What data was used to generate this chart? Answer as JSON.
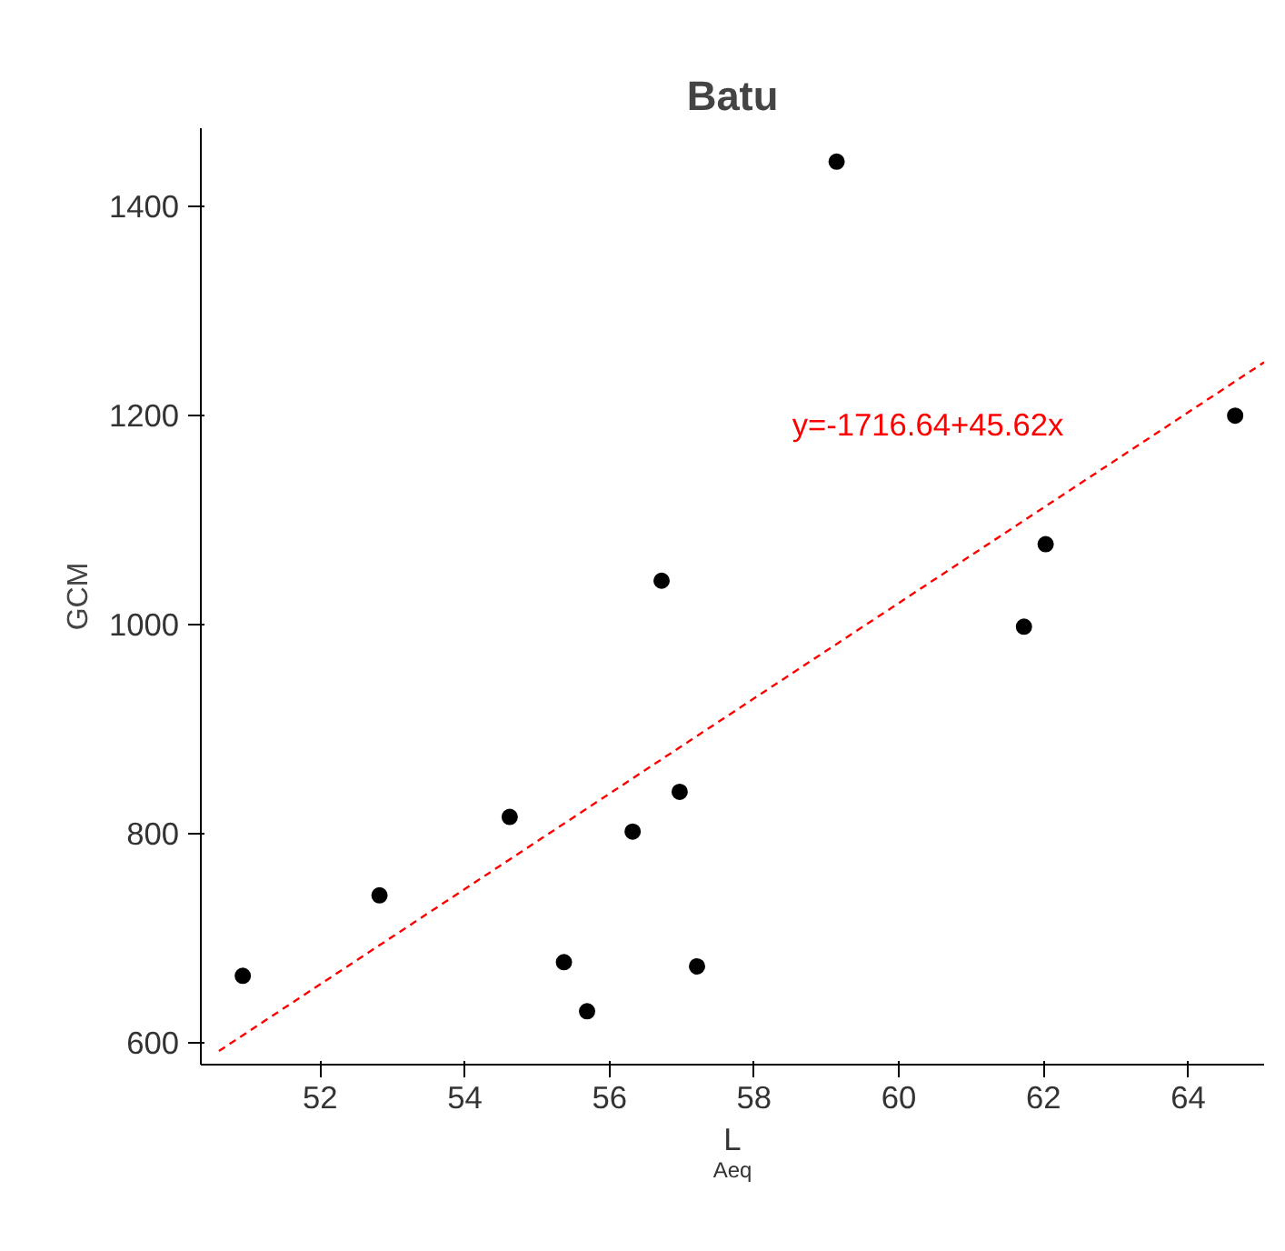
{
  "chart_data": {
    "type": "scatter",
    "title": "Batu",
    "xlabel": "L$_{Aeq}$",
    "ylabel": "GCM",
    "xlim": [
      50.35,
      65.05
    ],
    "ylim": [
      579,
      1475
    ],
    "xticks": [
      52,
      54,
      56,
      58,
      60,
      62,
      64
    ],
    "yticks": [
      600,
      800,
      1000,
      1200,
      1400
    ],
    "grid": false,
    "annotations": [
      "y=-1716.64+45.62x"
    ],
    "series": [
      {
        "color": "#000000",
        "marker": "circle",
        "x": [
          50.93,
          52.82,
          54.62,
          55.37,
          55.69,
          56.32,
          56.72,
          56.97,
          57.21,
          59.14,
          61.73,
          62.03,
          64.65
        ],
        "values": [
          664,
          741,
          816,
          677,
          630,
          802,
          1042,
          840,
          673,
          1443,
          998,
          1077,
          1200
        ]
      },
      {
        "type": "line",
        "color": "#ff0000",
        "line_style": "dashed",
        "x": [
          50.6,
          65.05
        ],
        "values": [
          592,
          1251
        ]
      }
    ]
  }
}
